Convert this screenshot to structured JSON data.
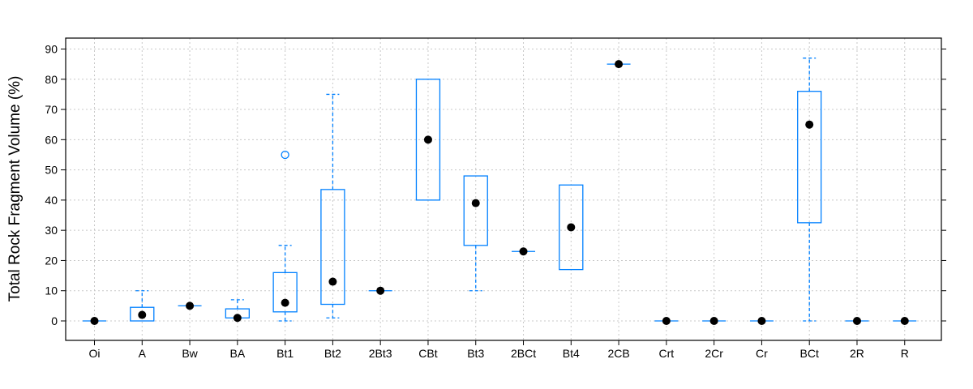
{
  "chart_data": {
    "type": "boxplot",
    "ylabel": "Total Rock Fragment Volume (%)",
    "ylim": [
      -6,
      96
    ],
    "yticks": [
      0,
      10,
      20,
      30,
      40,
      50,
      60,
      70,
      80,
      90
    ],
    "grid": true,
    "colors": {
      "box": "#0080ff",
      "median_point": "#000000",
      "grid": "#c8c8c8",
      "frame": "#000000"
    },
    "categories": [
      "Oi",
      "A",
      "Bw",
      "BA",
      "Bt1",
      "Bt2",
      "2Bt3",
      "CBt",
      "Bt3",
      "2BCt",
      "Bt4",
      "2CB",
      "Crt",
      "2Cr",
      "Cr",
      "BCt",
      "2R",
      "R"
    ],
    "boxes": [
      {
        "min": 0,
        "q1": 0,
        "median": 0,
        "q3": 0,
        "max": 0,
        "outliers": []
      },
      {
        "min": 0,
        "q1": 0,
        "median": 2,
        "q3": 4.5,
        "max": 10,
        "outliers": []
      },
      {
        "min": 5,
        "q1": 5,
        "median": 5,
        "q3": 5,
        "max": 5,
        "outliers": []
      },
      {
        "min": 1,
        "q1": 1,
        "median": 1,
        "q3": 4,
        "max": 7,
        "outliers": []
      },
      {
        "min": 0,
        "q1": 3,
        "median": 6,
        "q3": 16,
        "max": 25,
        "outliers": [
          55
        ]
      },
      {
        "min": 1,
        "q1": 5.5,
        "median": 13,
        "q3": 43.5,
        "max": 75,
        "outliers": []
      },
      {
        "min": 10,
        "q1": 10,
        "median": 10,
        "q3": 10,
        "max": 10,
        "outliers": []
      },
      {
        "min": 40,
        "q1": 40,
        "median": 60,
        "q3": 80,
        "max": 80,
        "outliers": []
      },
      {
        "min": 10,
        "q1": 25,
        "median": 39,
        "q3": 48,
        "max": 48,
        "outliers": []
      },
      {
        "min": 23,
        "q1": 23,
        "median": 23,
        "q3": 23,
        "max": 23,
        "outliers": []
      },
      {
        "min": 17,
        "q1": 17,
        "median": 31,
        "q3": 45,
        "max": 45,
        "outliers": []
      },
      {
        "min": 85,
        "q1": 85,
        "median": 85,
        "q3": 85,
        "max": 85,
        "outliers": []
      },
      {
        "min": 0,
        "q1": 0,
        "median": 0,
        "q3": 0,
        "max": 0,
        "outliers": []
      },
      {
        "min": 0,
        "q1": 0,
        "median": 0,
        "q3": 0,
        "max": 0,
        "outliers": []
      },
      {
        "min": 0,
        "q1": 0,
        "median": 0,
        "q3": 0,
        "max": 0,
        "outliers": []
      },
      {
        "min": 0,
        "q1": 32.5,
        "median": 65,
        "q3": 76,
        "max": 87,
        "outliers": []
      },
      {
        "min": 0,
        "q1": 0,
        "median": 0,
        "q3": 0,
        "max": 0,
        "outliers": []
      },
      {
        "min": 0,
        "q1": 0,
        "median": 0,
        "q3": 0,
        "max": 0,
        "outliers": []
      }
    ]
  }
}
